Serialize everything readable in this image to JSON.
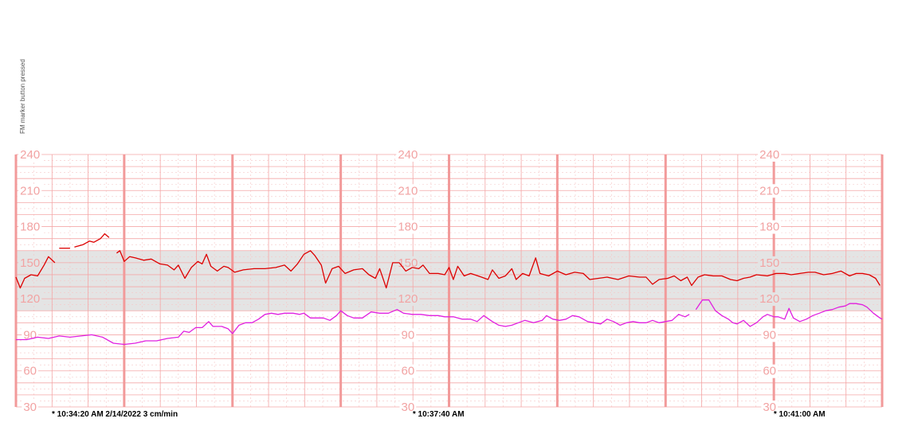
{
  "annotation": "FM marker button pressed",
  "chart_data": {
    "type": "line",
    "title": "",
    "xlabel": "",
    "ylabel": "",
    "ylim": [
      30,
      240
    ],
    "yticks": [
      240,
      210,
      180,
      150,
      120,
      90,
      60,
      30
    ],
    "normal_band": [
      110,
      160
    ],
    "paper_speed": "3 cm/min",
    "time_labels": [
      {
        "text": "* 10:34:20 AM  2/14/2022  3 cm/min",
        "minute": 0
      },
      {
        "text": "* 10:37:40 AM",
        "minute": 3.333
      },
      {
        "text": "* 10:41:00 AM",
        "minute": 6.667
      }
    ],
    "xlim_minutes": [
      0,
      8.0
    ],
    "series": [
      {
        "name": "",
        "color": "#dd0000",
        "segments": [
          [
            [
              0.0,
              138
            ],
            [
              0.04,
              129
            ],
            [
              0.08,
              137
            ],
            [
              0.14,
              140
            ],
            [
              0.2,
              139
            ],
            [
              0.26,
              148
            ],
            [
              0.3,
              155
            ],
            [
              0.36,
              150
            ]
          ],
          [
            [
              0.4,
              162
            ],
            [
              0.5,
              162
            ]
          ],
          [
            [
              0.54,
              163
            ],
            [
              0.62,
              165
            ],
            [
              0.68,
              168
            ],
            [
              0.72,
              167
            ],
            [
              0.78,
              170
            ],
            [
              0.82,
              174
            ],
            [
              0.86,
              171
            ]
          ],
          [
            [
              0.93,
              158
            ],
            [
              0.96,
              160
            ],
            [
              1.0,
              151
            ],
            [
              1.05,
              155
            ],
            [
              1.1,
              154
            ],
            [
              1.18,
              152
            ],
            [
              1.25,
              153
            ],
            [
              1.33,
              149
            ],
            [
              1.4,
              148
            ],
            [
              1.46,
              144
            ],
            [
              1.5,
              148
            ],
            [
              1.56,
              137
            ],
            [
              1.62,
              146
            ],
            [
              1.68,
              151
            ],
            [
              1.72,
              149
            ],
            [
              1.76,
              157
            ],
            [
              1.8,
              147
            ],
            [
              1.86,
              143
            ],
            [
              1.92,
              147
            ],
            [
              1.96,
              146
            ],
            [
              2.02,
              142
            ],
            [
              2.1,
              144
            ],
            [
              2.2,
              145
            ],
            [
              2.3,
              145
            ],
            [
              2.4,
              146
            ],
            [
              2.48,
              148
            ],
            [
              2.54,
              143
            ],
            [
              2.6,
              149
            ],
            [
              2.66,
              157
            ],
            [
              2.72,
              160
            ],
            [
              2.76,
              156
            ],
            [
              2.82,
              148
            ],
            [
              2.86,
              133
            ],
            [
              2.92,
              145
            ],
            [
              2.98,
              147
            ],
            [
              3.04,
              141
            ],
            [
              3.12,
              144
            ],
            [
              3.2,
              145
            ],
            [
              3.26,
              140
            ],
            [
              3.32,
              137
            ],
            [
              3.36,
              145
            ],
            [
              3.42,
              129
            ],
            [
              3.48,
              150
            ],
            [
              3.54,
              150
            ],
            [
              3.6,
              143
            ],
            [
              3.66,
              146
            ],
            [
              3.72,
              145
            ],
            [
              3.76,
              148
            ],
            [
              3.82,
              141
            ],
            [
              3.9,
              141
            ],
            [
              3.96,
              140
            ],
            [
              4.0,
              146
            ],
            [
              4.04,
              136
            ],
            [
              4.08,
              147
            ],
            [
              4.14,
              139
            ],
            [
              4.2,
              141
            ],
            [
              4.3,
              138
            ],
            [
              4.36,
              136
            ],
            [
              4.4,
              144
            ],
            [
              4.46,
              137
            ],
            [
              4.52,
              139
            ],
            [
              4.58,
              145
            ],
            [
              4.62,
              136
            ],
            [
              4.68,
              141
            ],
            [
              4.74,
              139
            ],
            [
              4.8,
              154
            ],
            [
              4.84,
              141
            ],
            [
              4.92,
              139
            ],
            [
              5.0,
              143
            ],
            [
              5.08,
              140
            ],
            [
              5.16,
              142
            ],
            [
              5.24,
              141
            ],
            [
              5.3,
              136
            ],
            [
              5.38,
              137
            ],
            [
              5.46,
              138
            ],
            [
              5.56,
              136
            ],
            [
              5.66,
              139
            ],
            [
              5.76,
              138
            ],
            [
              5.82,
              138
            ],
            [
              5.88,
              132
            ],
            [
              5.94,
              136
            ],
            [
              6.02,
              137
            ],
            [
              6.08,
              139
            ],
            [
              6.14,
              135
            ],
            [
              6.2,
              138
            ],
            [
              6.24,
              131
            ],
            [
              6.3,
              138
            ],
            [
              6.36,
              140
            ],
            [
              6.44,
              139
            ],
            [
              6.52,
              139
            ],
            [
              6.6,
              136
            ],
            [
              6.66,
              135
            ],
            [
              6.72,
              137
            ],
            [
              6.78,
              138
            ],
            [
              6.84,
              140
            ],
            [
              6.94,
              139
            ],
            [
              7.02,
              141
            ],
            [
              7.1,
              141
            ],
            [
              7.16,
              140
            ],
            [
              7.24,
              141
            ],
            [
              7.32,
              142
            ],
            [
              7.38,
              142
            ],
            [
              7.46,
              140
            ],
            [
              7.54,
              141
            ],
            [
              7.62,
              143
            ],
            [
              7.7,
              139
            ],
            [
              7.76,
              141
            ],
            [
              7.82,
              141
            ],
            [
              7.88,
              140
            ],
            [
              7.94,
              137
            ],
            [
              7.98,
              131
            ]
          ]
        ]
      },
      {
        "name": "",
        "color": "#e020e0",
        "segments": [
          [
            [
              0.0,
              86
            ],
            [
              0.1,
              86
            ],
            [
              0.2,
              88
            ],
            [
              0.3,
              87
            ],
            [
              0.4,
              89
            ],
            [
              0.5,
              88
            ],
            [
              0.6,
              89
            ],
            [
              0.7,
              90
            ],
            [
              0.8,
              88
            ],
            [
              0.9,
              83
            ],
            [
              1.0,
              82
            ],
            [
              1.1,
              83
            ],
            [
              1.2,
              85
            ],
            [
              1.3,
              85
            ],
            [
              1.4,
              87
            ],
            [
              1.5,
              88
            ],
            [
              1.55,
              93
            ],
            [
              1.6,
              92
            ],
            [
              1.66,
              96
            ],
            [
              1.72,
              96
            ],
            [
              1.78,
              101
            ],
            [
              1.82,
              97
            ],
            [
              1.9,
              97
            ],
            [
              1.96,
              95
            ],
            [
              2.0,
              91
            ],
            [
              2.06,
              98
            ],
            [
              2.12,
              100
            ],
            [
              2.18,
              100
            ],
            [
              2.24,
              103
            ],
            [
              2.3,
              107
            ],
            [
              2.36,
              108
            ],
            [
              2.42,
              107
            ],
            [
              2.48,
              108
            ],
            [
              2.56,
              108
            ],
            [
              2.62,
              107
            ],
            [
              2.66,
              108
            ],
            [
              2.72,
              104
            ],
            [
              2.78,
              104
            ],
            [
              2.84,
              104
            ],
            [
              2.9,
              102
            ],
            [
              2.96,
              106
            ],
            [
              3.0,
              110
            ],
            [
              3.06,
              106
            ],
            [
              3.12,
              104
            ],
            [
              3.2,
              104
            ],
            [
              3.28,
              109
            ],
            [
              3.36,
              108
            ],
            [
              3.44,
              108
            ],
            [
              3.52,
              111
            ],
            [
              3.58,
              108
            ],
            [
              3.66,
              107
            ],
            [
              3.74,
              107
            ],
            [
              3.82,
              106
            ],
            [
              3.9,
              106
            ],
            [
              3.96,
              105
            ],
            [
              4.04,
              105
            ],
            [
              4.12,
              103
            ],
            [
              4.2,
              103
            ],
            [
              4.26,
              101
            ],
            [
              4.32,
              106
            ],
            [
              4.4,
              101
            ],
            [
              4.46,
              98
            ],
            [
              4.52,
              97
            ],
            [
              4.58,
              98
            ],
            [
              4.64,
              100
            ],
            [
              4.7,
              102
            ],
            [
              4.78,
              100
            ],
            [
              4.86,
              102
            ],
            [
              4.9,
              106
            ],
            [
              4.96,
              103
            ],
            [
              5.02,
              102
            ],
            [
              5.08,
              103
            ],
            [
              5.14,
              106
            ],
            [
              5.2,
              105
            ],
            [
              5.28,
              101
            ],
            [
              5.34,
              100
            ],
            [
              5.4,
              99
            ],
            [
              5.46,
              103
            ],
            [
              5.52,
              101
            ],
            [
              5.58,
              98
            ],
            [
              5.64,
              100
            ],
            [
              5.7,
              101
            ],
            [
              5.76,
              100
            ],
            [
              5.82,
              100
            ],
            [
              5.88,
              102
            ],
            [
              5.94,
              100
            ],
            [
              6.0,
              101
            ],
            [
              6.06,
              102
            ],
            [
              6.12,
              107
            ],
            [
              6.18,
              105
            ],
            [
              6.22,
              107
            ]
          ],
          [
            [
              6.28,
              111
            ],
            [
              6.34,
              119
            ],
            [
              6.4,
              119
            ],
            [
              6.46,
              110
            ],
            [
              6.52,
              106
            ],
            [
              6.58,
              103
            ],
            [
              6.62,
              100
            ],
            [
              6.66,
              99
            ],
            [
              6.72,
              102
            ],
            [
              6.78,
              97
            ],
            [
              6.84,
              100
            ],
            [
              6.9,
              105
            ],
            [
              6.94,
              107
            ],
            [
              7.0,
              105
            ],
            [
              7.04,
              105
            ],
            [
              7.1,
              103
            ],
            [
              7.14,
              112
            ],
            [
              7.18,
              104
            ],
            [
              7.24,
              101
            ],
            [
              7.3,
              103
            ],
            [
              7.36,
              106
            ],
            [
              7.42,
              108
            ],
            [
              7.48,
              110
            ],
            [
              7.54,
              111
            ],
            [
              7.6,
              113
            ],
            [
              7.66,
              114
            ],
            [
              7.7,
              116
            ],
            [
              7.76,
              116
            ],
            [
              7.82,
              115
            ],
            [
              7.86,
              113
            ],
            [
              7.92,
              108
            ],
            [
              7.98,
              104
            ],
            [
              8.0,
              103
            ]
          ]
        ]
      }
    ]
  }
}
